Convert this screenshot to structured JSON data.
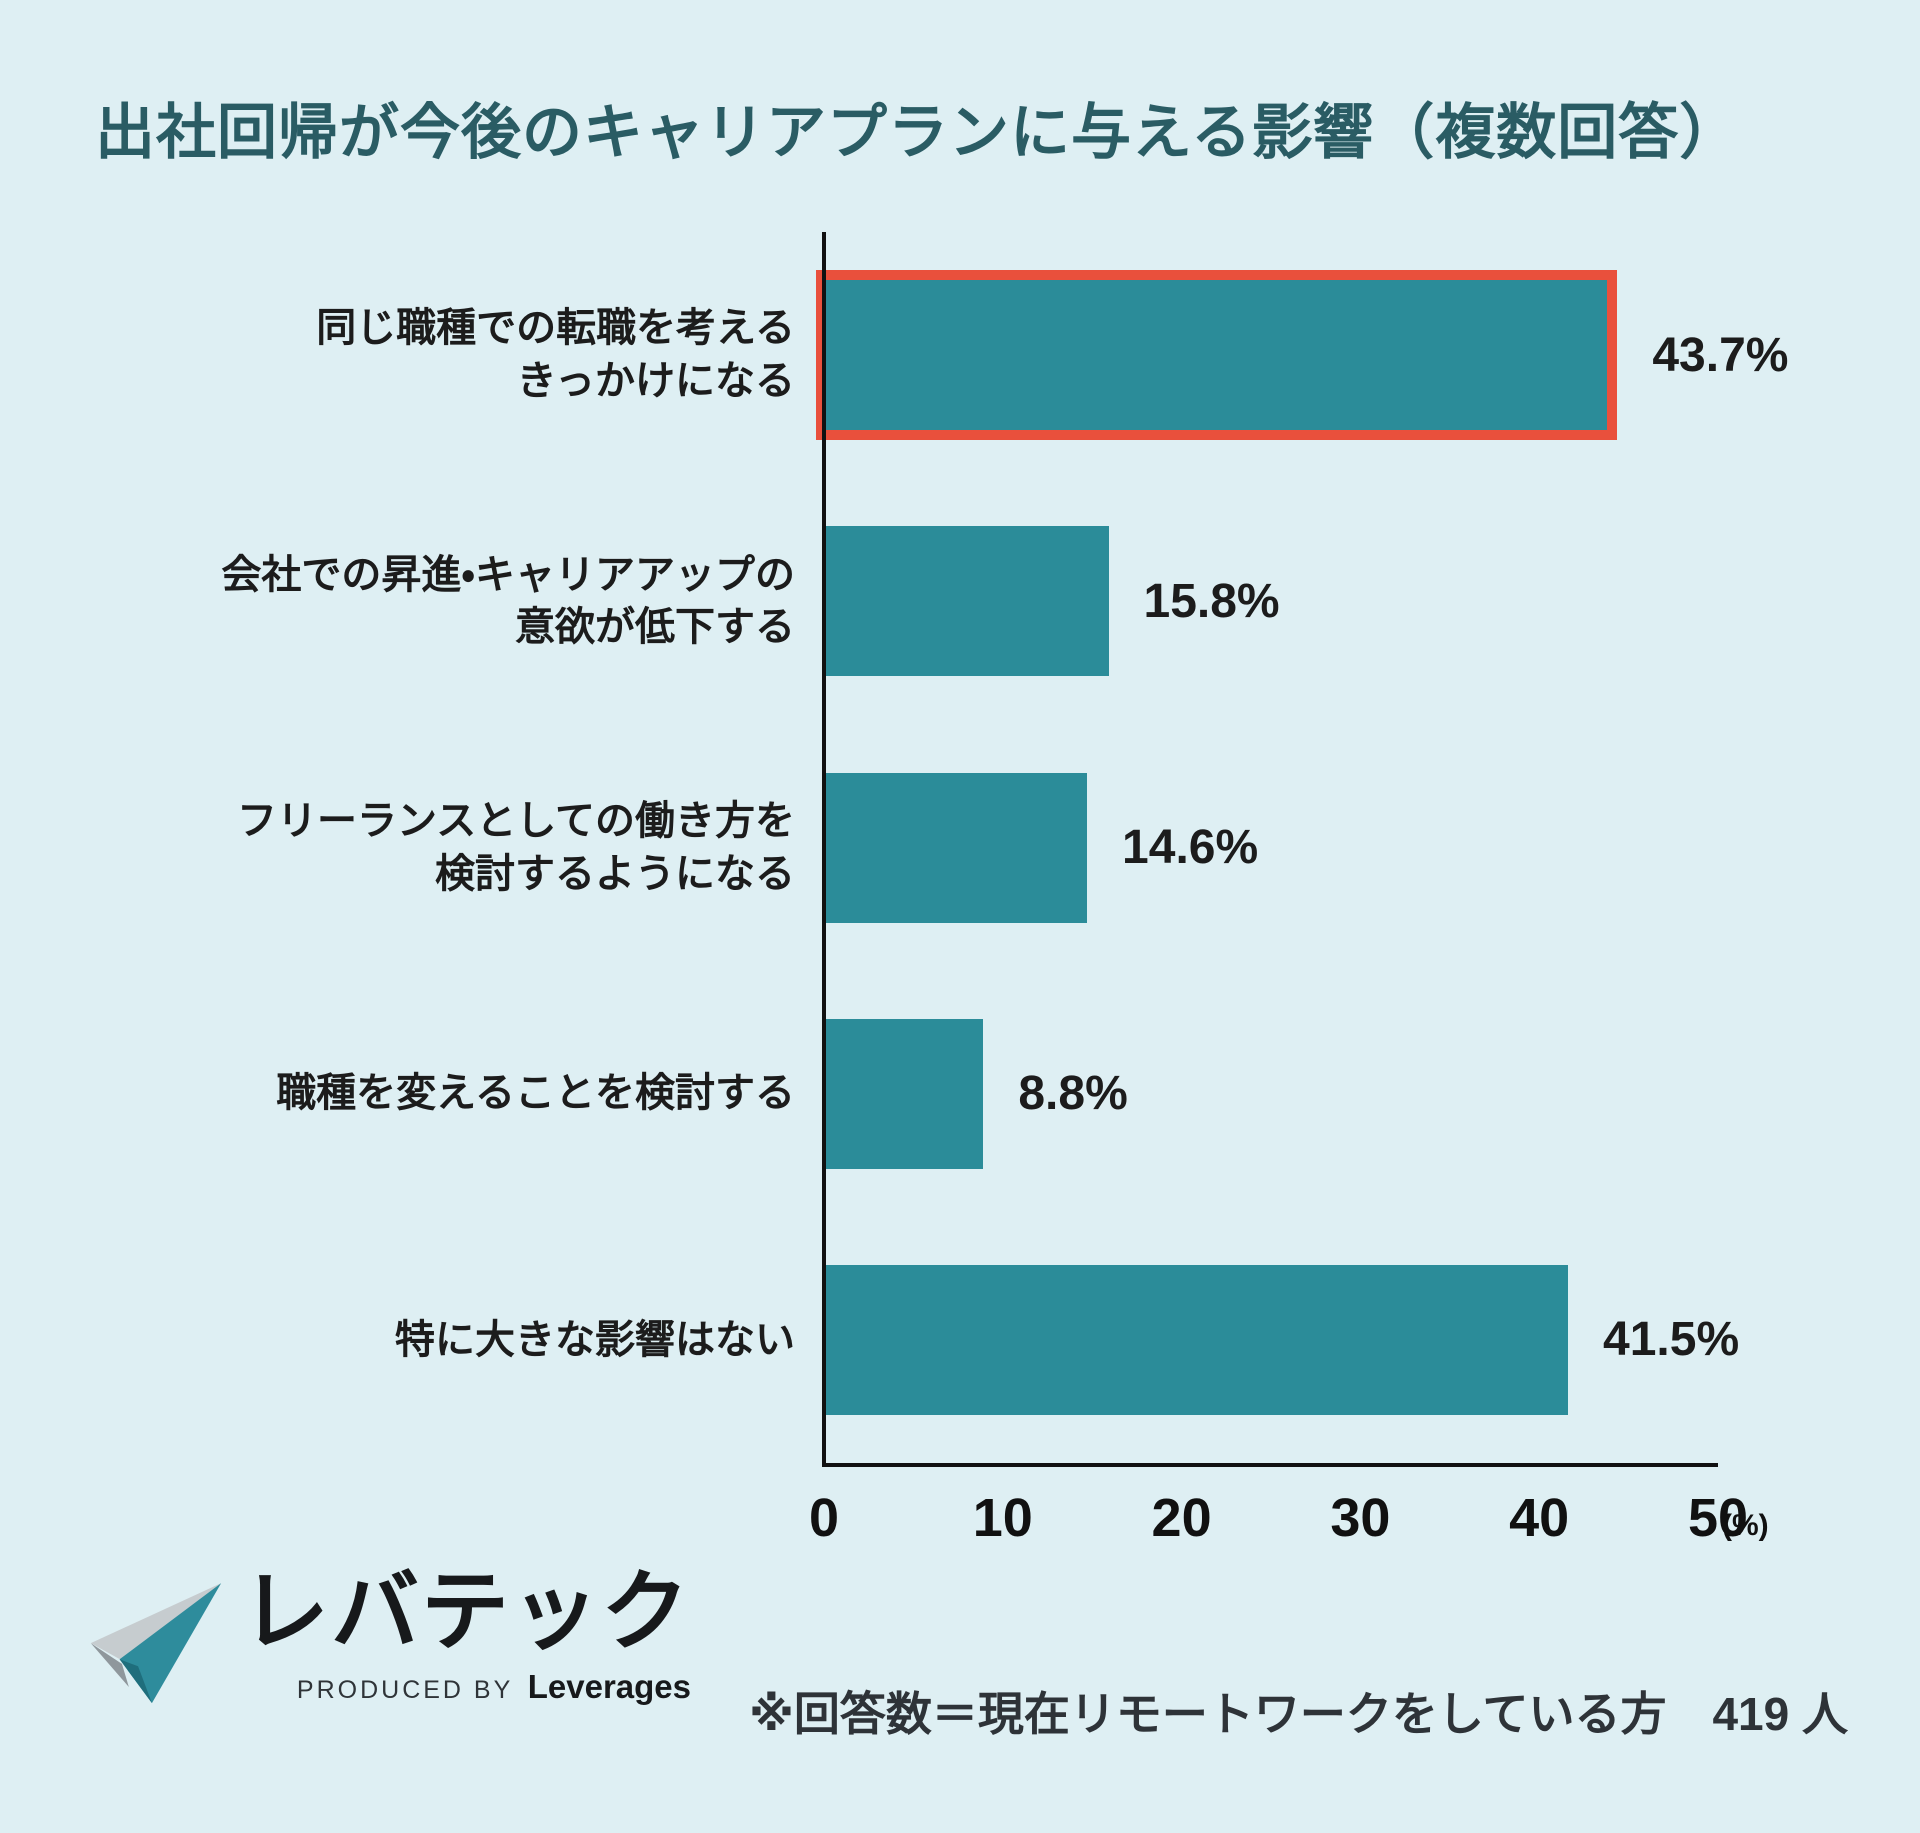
{
  "title": "出社回帰が今後のキャリアプランに与える影響（複数回答）",
  "chart_data": {
    "type": "bar",
    "orientation": "horizontal",
    "title": "出社回帰が今後のキャリアプランに与える影響（複数回答）",
    "categories": [
      "同じ職種での転職を考えるきっかけになる",
      "会社での昇進・キャリアアップの意欲が低下する",
      "フリーランスとしての働き方を検討するようになる",
      "職種を変えることを検討する",
      "特に大きな影響はない"
    ],
    "label_lines": [
      [
        "同じ職種での転職を考える",
        "きっかけになる"
      ],
      [
        "会社での昇進・キャリアアップの",
        "意欲が低下する"
      ],
      [
        "フリーランスとしての働き方を",
        "検討するようになる"
      ],
      [
        "職種を変えることを検討する"
      ],
      [
        "特に大きな影響はない"
      ]
    ],
    "values": [
      43.7,
      15.8,
      14.6,
      8.8,
      41.5
    ],
    "value_labels": [
      "43.7%",
      "15.8%",
      "14.6%",
      "8.8%",
      "41.5%"
    ],
    "highlighted_index": 0,
    "xlim": [
      0,
      50
    ],
    "x_ticks": [
      0,
      10,
      20,
      30,
      40,
      50
    ],
    "x_unit": "(%)",
    "grid": false,
    "legend": false,
    "bar_color": "#2B8C99",
    "highlight_border_color": "#E9503C"
  },
  "footer": {
    "note": "※回答数＝現在リモートワークをしている方　419 人",
    "logo": {
      "brand": "レバテック",
      "produced_by": "PRODUCED BY",
      "company": "Leverages"
    }
  },
  "colors": {
    "background": "#DEEFF3",
    "title": "#2A5C64",
    "text": "#1C1C1C",
    "bar": "#2B8C99",
    "highlight": "#E9503C"
  }
}
